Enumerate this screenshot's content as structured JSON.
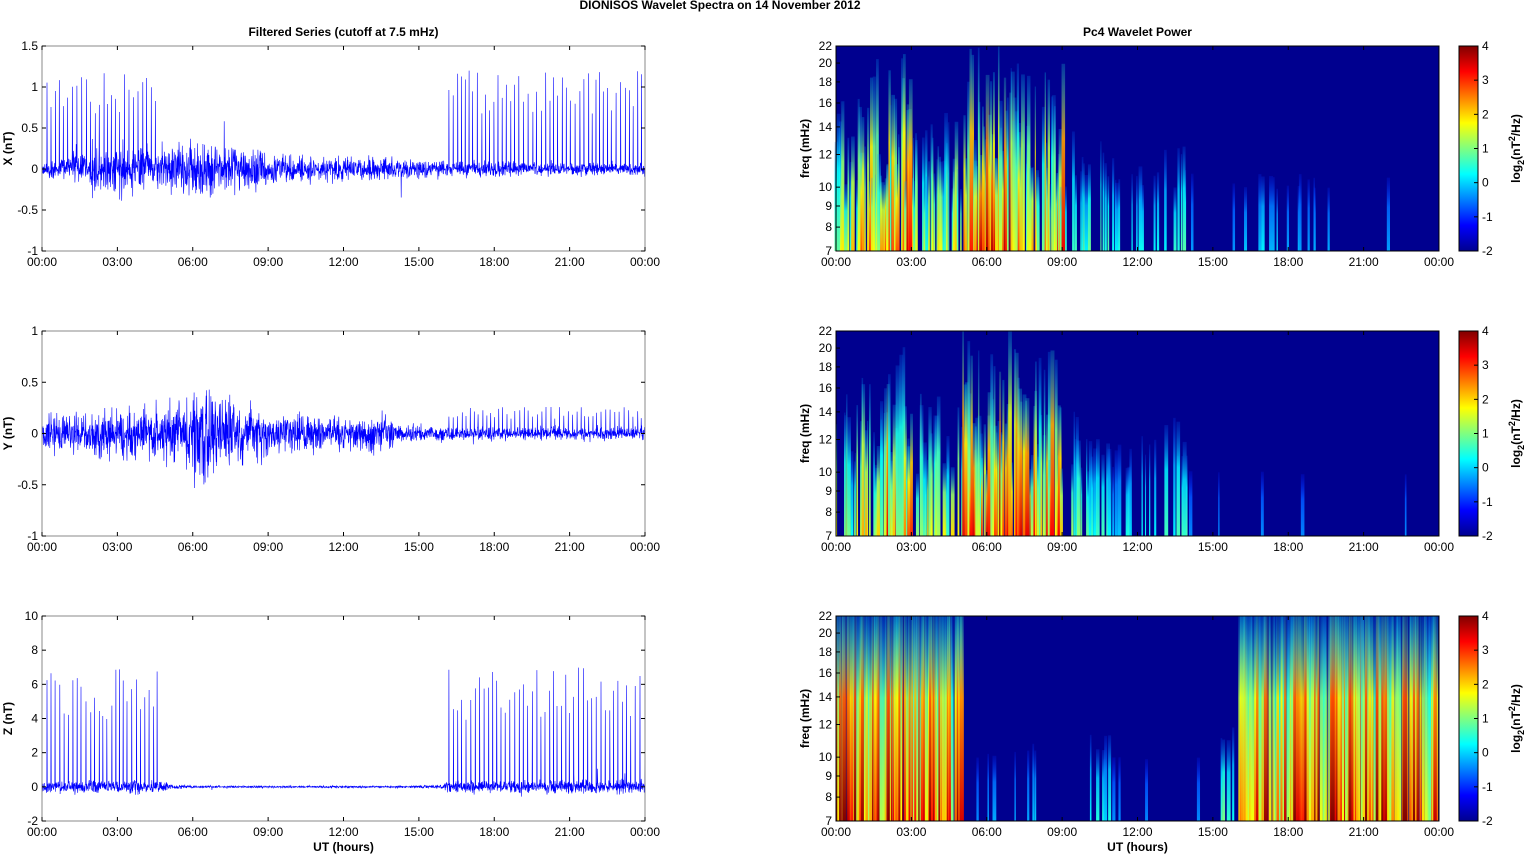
{
  "figure_title": "DIONISOS Wavelet Spectra on 14 November  2012",
  "colors": {
    "trace": "#0000ff",
    "background_power": "#00008f"
  },
  "chart_data": [
    {
      "type": "line",
      "component": "X",
      "title": "Filtered Series (cutoff at 7.5 mHz)",
      "ylabel": "X (nT)",
      "xlabel": "",
      "ylim": [
        -1,
        1.5
      ],
      "yticks": [
        "-1",
        "-0.5",
        "0",
        "0.5",
        "1",
        "1.5"
      ],
      "ytick_values": [
        -1,
        -0.5,
        0,
        0.5,
        1,
        1.5
      ],
      "xticks": [
        "00:00",
        "03:00",
        "06:00",
        "09:00",
        "12:00",
        "15:00",
        "18:00",
        "21:00",
        "00:00"
      ],
      "xlim_hours": [
        0,
        24
      ],
      "noise_envelope_by_hour": [
        0.1,
        0.15,
        0.25,
        0.25,
        0.2,
        0.25,
        0.25,
        0.2,
        0.2,
        0.15,
        0.12,
        0.12,
        0.1,
        0.1,
        0.1,
        0.08,
        0.07,
        0.07,
        0.07,
        0.06,
        0.06,
        0.06,
        0.06,
        0.06
      ],
      "spike_windows_hours": [
        [
          0.2,
          4.6
        ],
        [
          16.2,
          24
        ]
      ],
      "spike_height": 1.2
    },
    {
      "type": "line",
      "component": "Y",
      "title": "",
      "ylabel": "Y (nT)",
      "xlabel": "",
      "ylim": [
        -1,
        1
      ],
      "yticks": [
        "-1",
        "-0.5",
        "0",
        "0.5",
        "1"
      ],
      "ytick_values": [
        -1,
        -0.5,
        0,
        0.5,
        1
      ],
      "xticks": [
        "00:00",
        "03:00",
        "06:00",
        "09:00",
        "12:00",
        "15:00",
        "18:00",
        "21:00",
        "00:00"
      ],
      "xlim_hours": [
        0,
        24
      ],
      "noise_envelope_by_hour": [
        0.15,
        0.15,
        0.2,
        0.2,
        0.2,
        0.25,
        0.35,
        0.25,
        0.2,
        0.15,
        0.15,
        0.12,
        0.12,
        0.15,
        0.06,
        0.06,
        0.05,
        0.05,
        0.05,
        0.05,
        0.05,
        0.05,
        0.05,
        0.05
      ],
      "spike_windows_hours": [
        [
          16.2,
          24
        ]
      ],
      "spike_height": 0.26
    },
    {
      "type": "line",
      "component": "Z",
      "title": "",
      "ylabel": "Z (nT)",
      "xlabel": "UT (hours)",
      "ylim": [
        -2,
        10
      ],
      "yticks": [
        "-2",
        "0",
        "2",
        "4",
        "6",
        "8",
        "10"
      ],
      "ytick_values": [
        -2,
        0,
        2,
        4,
        6,
        8,
        10
      ],
      "xticks": [
        "00:00",
        "03:00",
        "06:00",
        "09:00",
        "12:00",
        "15:00",
        "18:00",
        "21:00",
        "00:00"
      ],
      "xlim_hours": [
        0,
        24
      ],
      "noise_envelope_by_hour": [
        0.3,
        0.3,
        0.3,
        0.3,
        0.3,
        0.1,
        0.05,
        0.05,
        0.05,
        0.05,
        0.05,
        0.05,
        0.05,
        0.05,
        0.05,
        0.08,
        0.25,
        0.3,
        0.3,
        0.3,
        0.3,
        0.3,
        0.3,
        0.3
      ],
      "spike_windows_hours": [
        [
          0.2,
          4.6
        ],
        [
          16.2,
          24
        ]
      ],
      "spike_height": 7.0
    },
    {
      "type": "heatmap",
      "component": "X",
      "title": "Pc4 Wavelet Power",
      "ylabel": "freq (mHz)",
      "xlabel": "",
      "ylim": [
        7,
        22
      ],
      "yscale": "log",
      "yticks": [
        "7",
        "8",
        "9",
        "10",
        "12",
        "14",
        "16",
        "18",
        "20",
        "22"
      ],
      "ytick_values": [
        7,
        8,
        9,
        10,
        12,
        14,
        16,
        18,
        20,
        22
      ],
      "xticks": [
        "00:00",
        "03:00",
        "06:00",
        "09:00",
        "12:00",
        "15:00",
        "18:00",
        "21:00",
        "00:00"
      ],
      "colorbar": {
        "range": [
          -2,
          4
        ],
        "ticks": [
          "-2",
          "-1",
          "0",
          "1",
          "2",
          "3",
          "4"
        ],
        "label_parts": [
          "log",
          "2",
          "(nT",
          "2",
          "/Hz)"
        ]
      },
      "activity_by_hour": [
        0.6,
        0.8,
        0.85,
        0.5,
        0.6,
        0.9,
        0.9,
        0.8,
        0.8,
        0.4,
        0.3,
        0.2,
        0.2,
        0.3,
        0.1,
        0.05,
        0.15,
        0.12,
        0.1,
        0.1,
        0.05,
        0.1,
        0.05,
        0.05
      ]
    },
    {
      "type": "heatmap",
      "component": "Y",
      "title": "",
      "ylabel": "freq (mHz)",
      "xlabel": "",
      "ylim": [
        7,
        22
      ],
      "yscale": "log",
      "yticks": [
        "7",
        "8",
        "9",
        "10",
        "12",
        "14",
        "16",
        "18",
        "20",
        "22"
      ],
      "ytick_values": [
        7,
        8,
        9,
        10,
        12,
        14,
        16,
        18,
        20,
        22
      ],
      "xticks": [
        "00:00",
        "03:00",
        "06:00",
        "09:00",
        "12:00",
        "15:00",
        "18:00",
        "21:00",
        "00:00"
      ],
      "colorbar": {
        "range": [
          -2,
          4
        ],
        "ticks": [
          "-2",
          "-1",
          "0",
          "1",
          "2",
          "3",
          "4"
        ],
        "label_parts": [
          "log",
          "2",
          "(nT",
          "2",
          "/Hz)"
        ]
      },
      "activity_by_hour": [
        0.5,
        0.6,
        0.8,
        0.5,
        0.5,
        0.9,
        0.95,
        0.85,
        0.8,
        0.4,
        0.3,
        0.2,
        0.25,
        0.35,
        0.02,
        0.02,
        0.02,
        0.05,
        0.02,
        0.02,
        0.02,
        0.02,
        0.02,
        0.02
      ]
    },
    {
      "type": "heatmap",
      "component": "Z",
      "title": "",
      "ylabel": "freq (mHz)",
      "xlabel": "UT (hours)",
      "ylim": [
        7,
        22
      ],
      "yscale": "log",
      "yticks": [
        "7",
        "8",
        "9",
        "10",
        "12",
        "14",
        "16",
        "18",
        "20",
        "22"
      ],
      "ytick_values": [
        7,
        8,
        9,
        10,
        12,
        14,
        16,
        18,
        20,
        22
      ],
      "xticks": [
        "00:00",
        "03:00",
        "06:00",
        "09:00",
        "12:00",
        "15:00",
        "18:00",
        "21:00",
        "00:00"
      ],
      "colorbar": {
        "range": [
          -2,
          4
        ],
        "ticks": [
          "-2",
          "-1",
          "0",
          "1",
          "2",
          "3",
          "4"
        ],
        "label_parts": [
          "log",
          "2",
          "(nT",
          "2",
          "/Hz)"
        ]
      },
      "activity_by_hour": [
        1,
        1,
        1,
        1,
        0.95,
        0.03,
        0.1,
        0.1,
        0.03,
        0.03,
        0.2,
        0.03,
        0.02,
        0.02,
        0.02,
        0.3,
        0.9,
        0.9,
        1,
        1,
        1,
        1,
        1,
        0.9
      ]
    }
  ]
}
